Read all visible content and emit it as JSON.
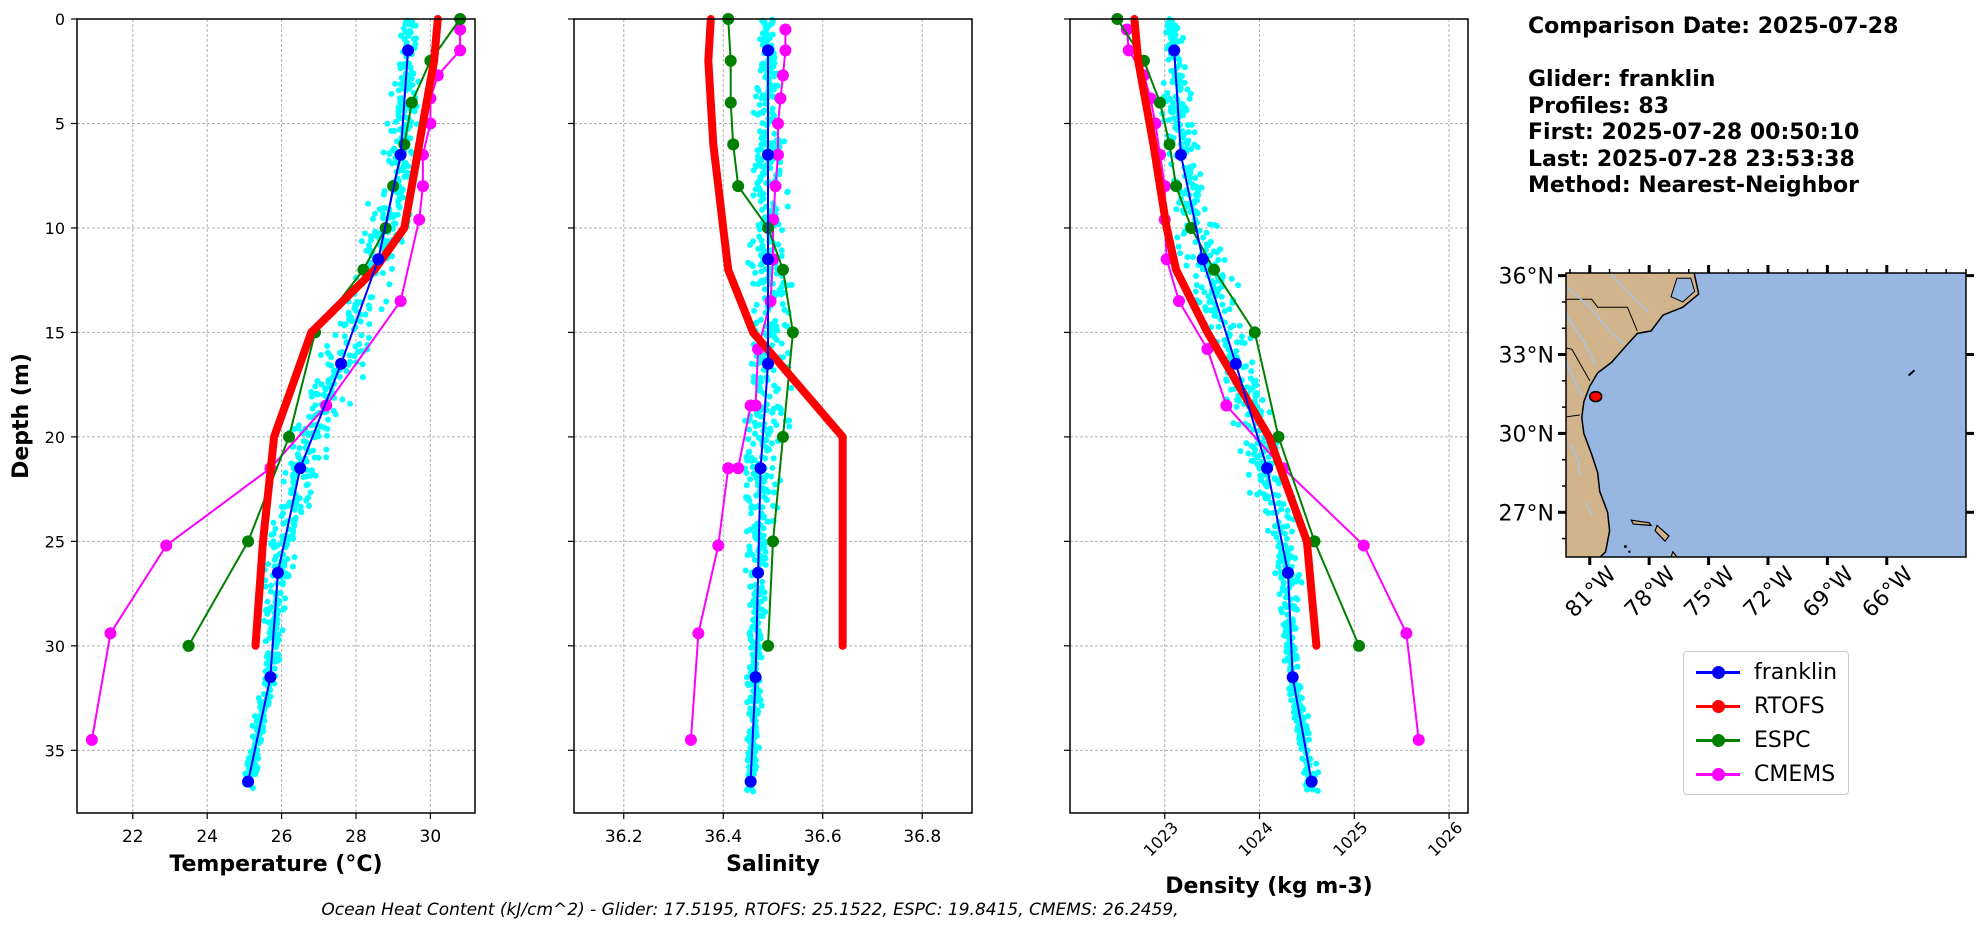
{
  "info": {
    "comparison": "Comparison Date: 2025-07-28",
    "glider": "Glider: franklin",
    "profiles": "Profiles: 83",
    "first": "First: 2025-07-28 00:50:10",
    "last": "Last: 2025-07-28 23:53:38",
    "method": "Method: Nearest-Neighbor"
  },
  "footer": "Ocean Heat Content (kJ/cm^2) - Glider: 17.5195,  RTOFS: 25.1522,  ESPC: 19.8415,  CMEMS: 26.2459,",
  "colors": {
    "franklin": "#0000ff",
    "RTOFS": "#ff0000",
    "ESPC": "#008000",
    "CMEMS": "#ff00ff",
    "glider_scatter": "#00ffff",
    "land": "#d2b48c",
    "ocean": "#97b6e1",
    "river": "#aac4e6"
  },
  "legend": [
    {
      "name": "franklin",
      "color": "#0000ff"
    },
    {
      "name": "RTOFS",
      "color": "#ff0000"
    },
    {
      "name": "ESPC",
      "color": "#008000"
    },
    {
      "name": "CMEMS",
      "color": "#ff00ff"
    }
  ],
  "map": {
    "lat_labels": [
      "36°N",
      "33°N",
      "30°N",
      "27°N"
    ],
    "lon_labels": [
      "81°W",
      "78°W",
      "75°W",
      "72°W",
      "69°W",
      "66°W"
    ],
    "glider_position": {
      "lon": -80.7,
      "lat": 31.4
    }
  },
  "chart_data": [
    {
      "type": "line",
      "xlabel": "Temperature (°C)",
      "ylabel": "Depth (m)",
      "xlim": [
        20.5,
        31.2
      ],
      "ylim": [
        38,
        0
      ],
      "xticks": [
        "22",
        "24",
        "26",
        "28",
        "30"
      ],
      "yticks": [
        "0",
        "5",
        "10",
        "15",
        "20",
        "25",
        "30",
        "35"
      ],
      "grid": true,
      "series": [
        {
          "name": "franklin",
          "x": [
            29.4,
            29.2,
            28.6,
            27.6,
            26.5,
            25.9,
            25.7,
            25.1
          ],
          "y": [
            1.5,
            6.5,
            11.5,
            16.5,
            21.5,
            26.5,
            31.5,
            36.5
          ]
        },
        {
          "name": "RTOFS",
          "x": [
            30.2,
            30.1,
            29.9,
            29.7,
            29.5,
            29.3,
            28.5,
            26.8,
            25.8,
            25.5,
            25.3
          ],
          "y": [
            0,
            2,
            4,
            6,
            8,
            10,
            12,
            15,
            20,
            25,
            30
          ]
        },
        {
          "name": "ESPC",
          "x": [
            30.8,
            30.0,
            29.5,
            29.3,
            29.0,
            28.8,
            28.2,
            26.9,
            26.2,
            25.1,
            23.5
          ],
          "y": [
            0,
            2,
            4,
            6,
            8,
            10,
            12,
            15,
            20,
            25,
            30
          ]
        },
        {
          "name": "CMEMS",
          "x": [
            30.8,
            30.8,
            30.2,
            30.0,
            30.0,
            29.8,
            29.8,
            29.7,
            29.2,
            27.2,
            25.7,
            22.9,
            21.4,
            20.9
          ],
          "y": [
            0.5,
            1.5,
            2.7,
            3.8,
            5.0,
            6.5,
            8.0,
            9.6,
            13.5,
            18.5,
            21.5,
            25.2,
            29.4,
            34.5
          ]
        }
      ]
    },
    {
      "type": "line",
      "xlabel": "Salinity",
      "ylabel": "",
      "xlim": [
        36.1,
        36.9
      ],
      "ylim": [
        38,
        0
      ],
      "xticks": [
        "36.2",
        "36.4",
        "36.6",
        "36.8"
      ],
      "grid": true,
      "series": [
        {
          "name": "franklin",
          "x": [
            36.49,
            36.49,
            36.49,
            36.49,
            36.475,
            36.47,
            36.465,
            36.455
          ],
          "y": [
            1.5,
            6.5,
            11.5,
            16.5,
            21.5,
            26.5,
            31.5,
            36.5
          ]
        },
        {
          "name": "RTOFS",
          "x": [
            36.375,
            36.37,
            36.375,
            36.38,
            36.39,
            36.4,
            36.41,
            36.46,
            36.64,
            36.64,
            36.64
          ],
          "y": [
            0,
            2,
            4,
            6,
            8,
            10,
            12,
            15,
            20,
            25,
            30
          ]
        },
        {
          "name": "ESPC",
          "x": [
            36.41,
            36.415,
            36.415,
            36.42,
            36.43,
            36.49,
            36.52,
            36.54,
            36.52,
            36.5,
            36.49
          ],
          "y": [
            0,
            2,
            4,
            6,
            8,
            10,
            12,
            15,
            20,
            25,
            30
          ]
        },
        {
          "name": "CMEMS",
          "x": [
            36.525,
            36.525,
            36.52,
            36.515,
            36.51,
            36.51,
            36.505,
            36.5,
            36.5,
            36.495,
            36.47,
            36.465,
            36.455,
            36.43,
            36.41,
            36.39,
            36.35,
            36.335
          ],
          "y": [
            0.5,
            1.5,
            2.7,
            3.8,
            5.0,
            6.5,
            8.0,
            9.6,
            11.5,
            13.5,
            15.8,
            18.5,
            18.5,
            21.5,
            21.5,
            25.2,
            29.4,
            34.5
          ]
        }
      ]
    },
    {
      "type": "line",
      "xlabel": "Density (kg m-3)",
      "ylabel": "",
      "xlim": [
        1022.0,
        1026.2
      ],
      "ylim": [
        38,
        0
      ],
      "xticks": [
        "1023",
        "1024",
        "1025",
        "1026"
      ],
      "grid": true,
      "series": [
        {
          "name": "franklin",
          "x": [
            1023.1,
            1023.17,
            1023.4,
            1023.75,
            1024.08,
            1024.3,
            1024.35,
            1024.55
          ],
          "y": [
            1.5,
            6.5,
            11.5,
            16.5,
            21.5,
            26.5,
            31.5,
            36.5
          ]
        },
        {
          "name": "RTOFS",
          "x": [
            1022.68,
            1022.72,
            1022.8,
            1022.88,
            1022.95,
            1023.02,
            1023.12,
            1023.45,
            1024.1,
            1024.5,
            1024.6
          ],
          "y": [
            0,
            2,
            4,
            6,
            8,
            10,
            12,
            15,
            20,
            25,
            30
          ]
        },
        {
          "name": "ESPC",
          "x": [
            1022.5,
            1022.78,
            1022.95,
            1023.05,
            1023.12,
            1023.28,
            1023.52,
            1023.95,
            1024.2,
            1024.58,
            1025.05
          ],
          "y": [
            0,
            2,
            4,
            6,
            8,
            10,
            12,
            15,
            20,
            25,
            30
          ]
        },
        {
          "name": "CMEMS",
          "x": [
            1022.6,
            1022.62,
            1022.78,
            1022.85,
            1022.9,
            1022.95,
            1023.0,
            1023.0,
            1023.02,
            1023.15,
            1023.45,
            1023.65,
            1024.25,
            1025.1,
            1025.55,
            1025.68
          ],
          "y": [
            0.5,
            1.5,
            2.7,
            3.8,
            5.0,
            6.5,
            8.0,
            9.6,
            11.5,
            13.5,
            15.8,
            18.5,
            21.5,
            25.2,
            29.4,
            34.5
          ]
        }
      ]
    }
  ]
}
